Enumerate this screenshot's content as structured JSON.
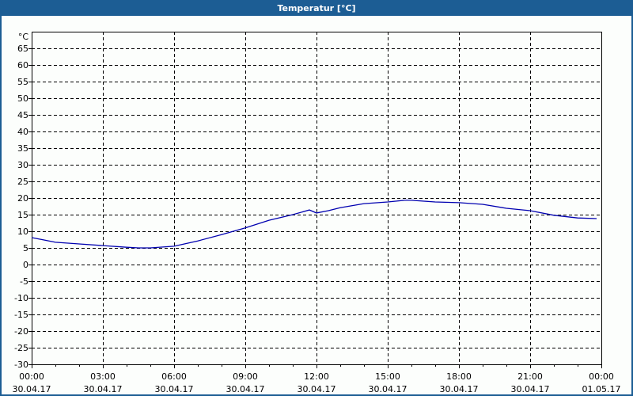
{
  "window": {
    "title": "Temperatur [°C]",
    "colors": {
      "frame": "#1c5d94",
      "plot_bg": "#fcfefc",
      "line": "#0000b0",
      "grid": "#000000"
    }
  },
  "chart_data": {
    "type": "line",
    "title": "Temperatur [°C]",
    "xlabel": "",
    "ylabel": "°C",
    "ylim": [
      -30,
      70
    ],
    "yticks": [
      -30,
      -25,
      -20,
      -15,
      -10,
      -5,
      0,
      5,
      10,
      15,
      20,
      25,
      30,
      35,
      40,
      45,
      50,
      55,
      60,
      65
    ],
    "xlim_hours": [
      0,
      24
    ],
    "xticks": [
      {
        "time": "00:00",
        "date": "30.04.17"
      },
      {
        "time": "03:00",
        "date": "30.04.17"
      },
      {
        "time": "06:00",
        "date": "30.04.17"
      },
      {
        "time": "09:00",
        "date": "30.04.17"
      },
      {
        "time": "12:00",
        "date": "30.04.17"
      },
      {
        "time": "15:00",
        "date": "30.04.17"
      },
      {
        "time": "18:00",
        "date": "30.04.17"
      },
      {
        "time": "21:00",
        "date": "30.04.17"
      },
      {
        "time": "00:00",
        "date": "01.05.17"
      }
    ],
    "grid": true,
    "legend": null,
    "series": [
      {
        "name": "Temperatur",
        "x_hours": [
          0,
          0.5,
          1,
          2,
          3,
          4,
          4.5,
          5,
          6,
          7,
          8,
          9,
          10,
          11,
          11.7,
          12,
          12.5,
          13,
          14,
          15,
          15.7,
          16,
          17,
          18,
          19,
          20,
          21,
          22,
          23,
          23.8
        ],
        "values": [
          8.1,
          7.4,
          6.7,
          6.2,
          5.7,
          5.2,
          5.0,
          5.0,
          5.5,
          7.1,
          9.0,
          11.0,
          13.3,
          15.0,
          16.4,
          15.5,
          16.2,
          17.1,
          18.3,
          18.8,
          19.3,
          19.3,
          18.8,
          18.6,
          18.1,
          16.9,
          16.2,
          14.8,
          14.0,
          13.8
        ]
      }
    ]
  }
}
